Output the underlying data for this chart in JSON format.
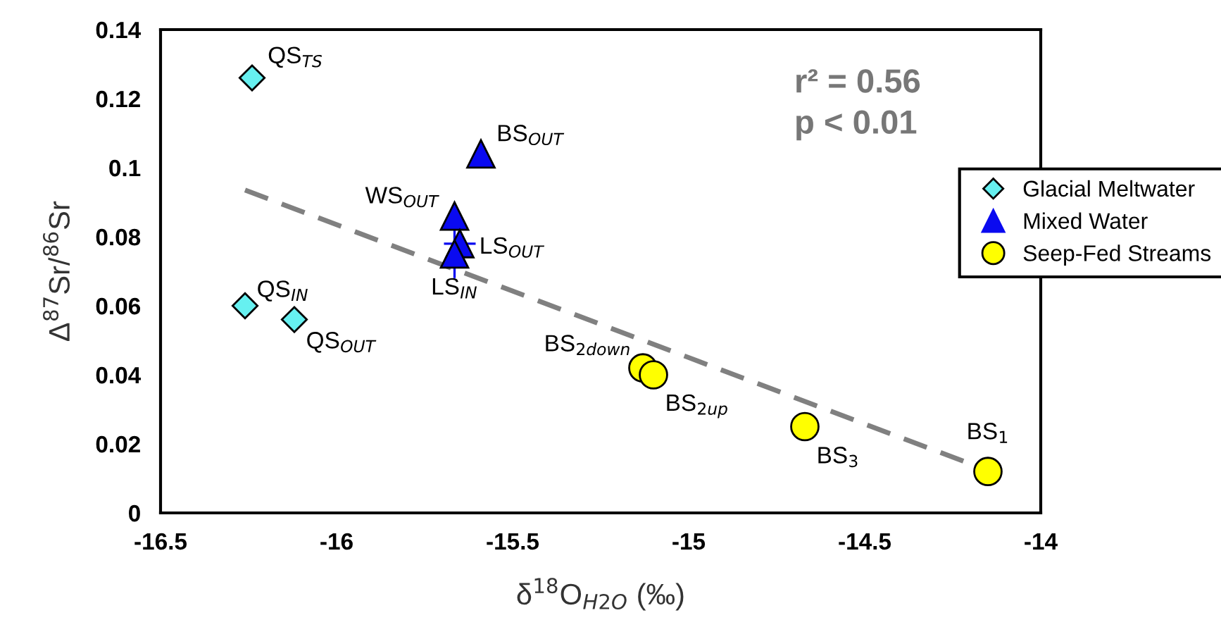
{
  "chart_data": {
    "type": "scatter",
    "xlabel": "δ$^{18}$O$_{H2O}$ (‰)",
    "ylabel": "Δ$^{87}$Sr/$^{86}$Sr",
    "xlim": [
      -16.5,
      -14
    ],
    "xticks": [
      -16.5,
      -16,
      -15.5,
      -15,
      -14.5,
      -14
    ],
    "ylim": [
      0,
      0.14
    ],
    "yticks": [
      0,
      0.02,
      0.04,
      0.06,
      0.08,
      0.1,
      0.12,
      0.14
    ],
    "grid": false,
    "legend": "right",
    "series": [
      {
        "name": "Glacial Meltwater",
        "color": "#66f0f0",
        "marker": "diamond",
        "x": [
          -16.24,
          -16.26,
          -16.12
        ],
        "values": [
          0.126,
          0.06,
          0.056
        ]
      },
      {
        "name": "Mixed Water",
        "color": "#0a0af0",
        "marker": "triangle",
        "x": [
          -15.59,
          -15.665,
          -15.65,
          -15.665
        ],
        "values": [
          0.104,
          0.086,
          0.078,
          0.075
        ],
        "xerrors": [
          null,
          null,
          0.045,
          null
        ],
        "errors": [
          null,
          null,
          null,
          0.007
        ]
      },
      {
        "name": "Seep-Fed Streams",
        "color": "#ffff00",
        "marker": "circle",
        "x": [
          -15.13,
          -15.1,
          -14.67,
          -14.15
        ],
        "values": [
          0.042,
          0.04,
          0.025,
          0.012
        ]
      },
      {
        "type": "line",
        "color": "#808080",
        "line_style": "dashed",
        "marker": "none",
        "x": [
          -16.26,
          -14.21
        ],
        "values": [
          0.0935,
          0.0146
        ]
      }
    ],
    "annotations": [
      {
        "text": "QS$_{TS}$",
        "x": -16.24,
        "y": 0.126
      },
      {
        "text": "QS$_{IN}$",
        "x": -16.26,
        "y": 0.06
      },
      {
        "text": "QS$_{OUT}$",
        "x": -16.12,
        "y": 0.056
      },
      {
        "text": "BS$_{OUT}$",
        "x": -15.59,
        "y": 0.104
      },
      {
        "text": "WS$_{OUT}$",
        "x": -15.665,
        "y": 0.086
      },
      {
        "text": "LS$_{OUT}$",
        "x": -15.65,
        "y": 0.078
      },
      {
        "text": "LS$_{IN}$",
        "x": -15.665,
        "y": 0.075
      },
      {
        "text": "BS$_{2down}$",
        "x": -15.13,
        "y": 0.042
      },
      {
        "text": "BS$_{2up}$",
        "x": -15.1,
        "y": 0.04
      },
      {
        "text": "BS$_{3}$",
        "x": -14.67,
        "y": 0.025
      },
      {
        "text": "BS$_{1}$",
        "x": -14.15,
        "y": 0.012
      },
      "r² = 0.56",
      "p < 0.01"
    ]
  }
}
